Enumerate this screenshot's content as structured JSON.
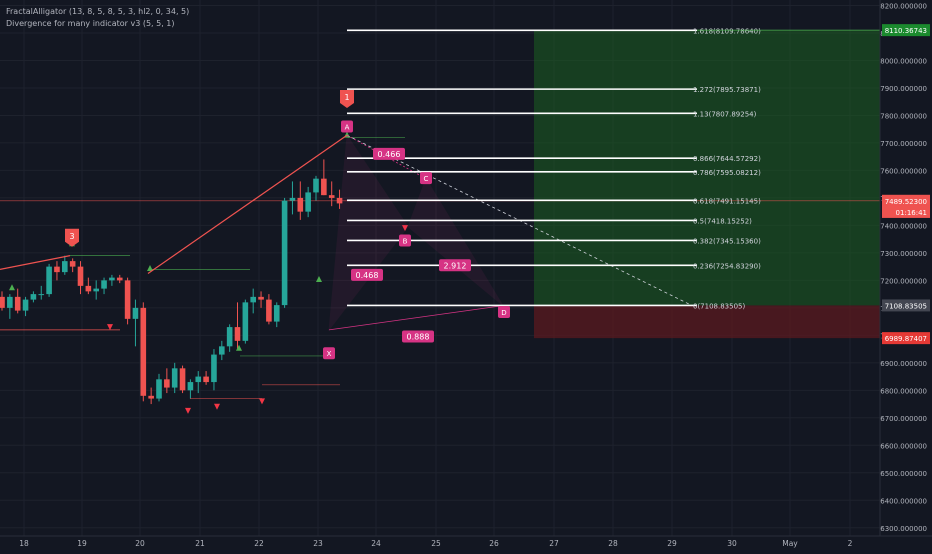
{
  "legend": {
    "indicator1": "FractalAlligator (13, 8, 5, 8, 5, 3, hl2, 0, 34, 5)",
    "indicator2": "Divergence for many indicator v3 (5, 5, 1)"
  },
  "colors": {
    "background": "#131722",
    "grid": "#1e222d",
    "up": "#26a69a",
    "down": "#ef5350",
    "pattern": "#d63384",
    "fib_line": "#ffffff",
    "target_zone": "#1b5e20",
    "stop_zone": "#5b1a1f",
    "fractal_up": "#4caf50",
    "fractal_down": "#f23645"
  },
  "chart_data": {
    "type": "candlestick",
    "x_tick_labels": [
      "18",
      "19",
      "20",
      "21",
      "22",
      "23",
      "24",
      "25",
      "26",
      "27",
      "28",
      "29",
      "30",
      "May",
      "2"
    ],
    "y_tick_labels": [
      "6300.000000",
      "6400.000000",
      "6500.000000",
      "6600.000000",
      "6700.000000",
      "6800.000000",
      "6900.000000",
      "7000.000000",
      "7100.000000",
      "7200.000000",
      "7300.000000",
      "7400.000000",
      "7500.000000",
      "7600.000000",
      "7700.000000",
      "7800.000000",
      "7900.000000",
      "8000.000000",
      "8100.000000",
      "8200.000000"
    ],
    "ylim": [
      6270,
      8220
    ],
    "candles": [
      {
        "o": 7140,
        "h": 7160,
        "l": 7090,
        "c": 7100
      },
      {
        "o": 7100,
        "h": 7150,
        "l": 7060,
        "c": 7140
      },
      {
        "o": 7140,
        "h": 7170,
        "l": 7080,
        "c": 7090
      },
      {
        "o": 7090,
        "h": 7140,
        "l": 7070,
        "c": 7130
      },
      {
        "o": 7130,
        "h": 7160,
        "l": 7120,
        "c": 7150
      },
      {
        "o": 7150,
        "h": 7180,
        "l": 7130,
        "c": 7150
      },
      {
        "o": 7150,
        "h": 7260,
        "l": 7140,
        "c": 7250
      },
      {
        "o": 7250,
        "h": 7270,
        "l": 7200,
        "c": 7230
      },
      {
        "o": 7230,
        "h": 7290,
        "l": 7220,
        "c": 7270
      },
      {
        "o": 7270,
        "h": 7280,
        "l": 7230,
        "c": 7250
      },
      {
        "o": 7250,
        "h": 7270,
        "l": 7150,
        "c": 7180
      },
      {
        "o": 7180,
        "h": 7210,
        "l": 7150,
        "c": 7160
      },
      {
        "o": 7160,
        "h": 7200,
        "l": 7130,
        "c": 7170
      },
      {
        "o": 7170,
        "h": 7210,
        "l": 7150,
        "c": 7200
      },
      {
        "o": 7200,
        "h": 7220,
        "l": 7180,
        "c": 7210
      },
      {
        "o": 7210,
        "h": 7220,
        "l": 7190,
        "c": 7200
      },
      {
        "o": 7200,
        "h": 7210,
        "l": 7040,
        "c": 7060
      },
      {
        "o": 7060,
        "h": 7130,
        "l": 6960,
        "c": 7100
      },
      {
        "o": 7100,
        "h": 7120,
        "l": 6760,
        "c": 6780
      },
      {
        "o": 6780,
        "h": 6810,
        "l": 6750,
        "c": 6770
      },
      {
        "o": 6770,
        "h": 6860,
        "l": 6760,
        "c": 6840
      },
      {
        "o": 6840,
        "h": 6880,
        "l": 6790,
        "c": 6810
      },
      {
        "o": 6810,
        "h": 6900,
        "l": 6790,
        "c": 6880
      },
      {
        "o": 6880,
        "h": 6890,
        "l": 6790,
        "c": 6800
      },
      {
        "o": 6800,
        "h": 6840,
        "l": 6770,
        "c": 6830
      },
      {
        "o": 6830,
        "h": 6870,
        "l": 6790,
        "c": 6850
      },
      {
        "o": 6850,
        "h": 6870,
        "l": 6820,
        "c": 6830
      },
      {
        "o": 6830,
        "h": 6950,
        "l": 6800,
        "c": 6930
      },
      {
        "o": 6930,
        "h": 6980,
        "l": 6910,
        "c": 6960
      },
      {
        "o": 6960,
        "h": 7040,
        "l": 6940,
        "c": 7030
      },
      {
        "o": 7030,
        "h": 7120,
        "l": 6950,
        "c": 6980
      },
      {
        "o": 6980,
        "h": 7130,
        "l": 6970,
        "c": 7120
      },
      {
        "o": 7120,
        "h": 7170,
        "l": 7080,
        "c": 7140
      },
      {
        "o": 7140,
        "h": 7160,
        "l": 7100,
        "c": 7130
      },
      {
        "o": 7130,
        "h": 7150,
        "l": 7040,
        "c": 7050
      },
      {
        "o": 7050,
        "h": 7120,
        "l": 7030,
        "c": 7110
      },
      {
        "o": 7110,
        "h": 7500,
        "l": 7100,
        "c": 7490
      },
      {
        "o": 7490,
        "h": 7560,
        "l": 7440,
        "c": 7500
      },
      {
        "o": 7500,
        "h": 7560,
        "l": 7420,
        "c": 7450
      },
      {
        "o": 7450,
        "h": 7540,
        "l": 7430,
        "c": 7520
      },
      {
        "o": 7520,
        "h": 7580,
        "l": 7490,
        "c": 7570
      },
      {
        "o": 7570,
        "h": 7640,
        "l": 7510,
        "c": 7510
      },
      {
        "o": 7510,
        "h": 7560,
        "l": 7470,
        "c": 7500
      },
      {
        "o": 7500,
        "h": 7530,
        "l": 7460,
        "c": 7480
      }
    ],
    "fib_levels": [
      {
        "label": "0(7108.83505)",
        "value": 7108.83505
      },
      {
        "label": "0.236(7254.83290)",
        "value": 7254.8329
      },
      {
        "label": "0.382(7345.15360)",
        "value": 7345.1536
      },
      {
        "label": "0.5(7418.15252)",
        "value": 7418.15252
      },
      {
        "label": "0.618(7491.15145)",
        "value": 7491.15145
      },
      {
        "label": "0.786(7595.08212)",
        "value": 7595.08212
      },
      {
        "label": "0.866(7644.57292)",
        "value": 7644.57292
      },
      {
        "label": "1.13(7807.89254)",
        "value": 7807.89254
      },
      {
        "label": "1.272(7895.73871)",
        "value": 7895.73871
      },
      {
        "label": "1.618(8109.78640)",
        "value": 8109.7864
      }
    ],
    "price_tags": [
      {
        "text": "8110.36743",
        "value": 8110.36743,
        "color": "#1b8a2e"
      },
      {
        "text": "7489.52300",
        "value": 7489.523,
        "color": "#ef5350"
      },
      {
        "text": "01:16:41",
        "value": 7449,
        "color": "#ef5350"
      },
      {
        "text": "7108.83505",
        "value": 7108.83505,
        "color": "#434651"
      },
      {
        "text": "6989.87407",
        "value": 6989.87407,
        "color": "#e53935"
      }
    ],
    "pattern_labels": [
      "0.468",
      "0.888",
      "0.466",
      "2.912"
    ],
    "point_labels": [
      "X",
      "A",
      "B",
      "C",
      "D"
    ],
    "fractal_marks": [
      "3",
      "1"
    ]
  }
}
